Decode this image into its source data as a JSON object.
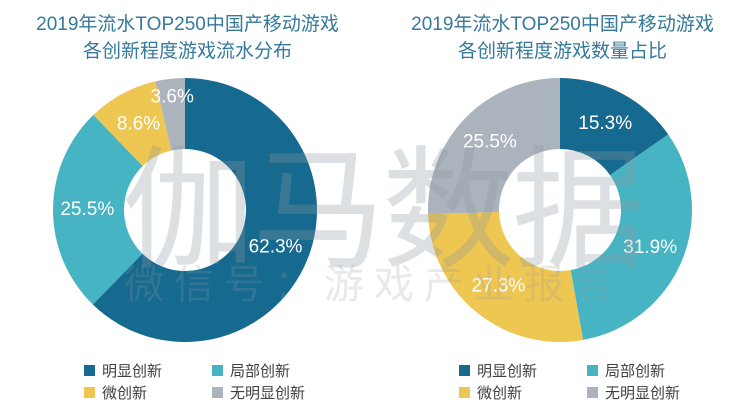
{
  "watermark": {
    "line1": "伽马数据",
    "line2": "微信号：游戏产业报告"
  },
  "chart_data": [
    {
      "type": "pie",
      "variant": "donut",
      "title": "2019年流水TOP250中国产移动游戏各创新程度游戏流水分布",
      "title_lines": [
        "2019年流水TOP250中国产移动游戏",
        "各创新程度游戏流水分布"
      ],
      "labels": [
        "明显创新",
        "局部创新",
        "微创新",
        "无明显创新"
      ],
      "values": [
        62.3,
        25.5,
        8.6,
        3.6
      ],
      "value_labels": [
        "62.3%",
        "25.5%",
        "8.6%",
        "3.6%"
      ],
      "colors": [
        "#16698F",
        "#46B4C3",
        "#EEC652",
        "#ABB3BC"
      ],
      "start_angle_deg": 0,
      "direction": "clockwise",
      "label_r": [
        0.74,
        0.74,
        0.74,
        0.86
      ],
      "legend_position": "bottom"
    },
    {
      "type": "pie",
      "variant": "donut",
      "title": "2019年流水TOP250中国产移动游戏各创新程度游戏数量占比",
      "title_lines": [
        "2019年流水TOP250中国产移动游戏",
        "各创新程度游戏数量占比"
      ],
      "labels": [
        "明显创新",
        "局部创新",
        "微创新",
        "无明显创新"
      ],
      "values": [
        15.3,
        31.9,
        27.3,
        25.5
      ],
      "value_labels": [
        "15.3%",
        "31.9%",
        "27.3%",
        "25.5%"
      ],
      "colors": [
        "#16698F",
        "#46B4C3",
        "#EEC652",
        "#ABB3BC"
      ],
      "start_angle_deg": 0,
      "direction": "clockwise",
      "label_r": [
        0.74,
        0.74,
        0.74,
        0.74
      ],
      "legend_position": "bottom"
    }
  ],
  "style": {
    "title_color": "#35799B",
    "legend_text_color": "#404040",
    "slice_label_color": "#FFFFFF",
    "background": "#FFFFFF"
  }
}
